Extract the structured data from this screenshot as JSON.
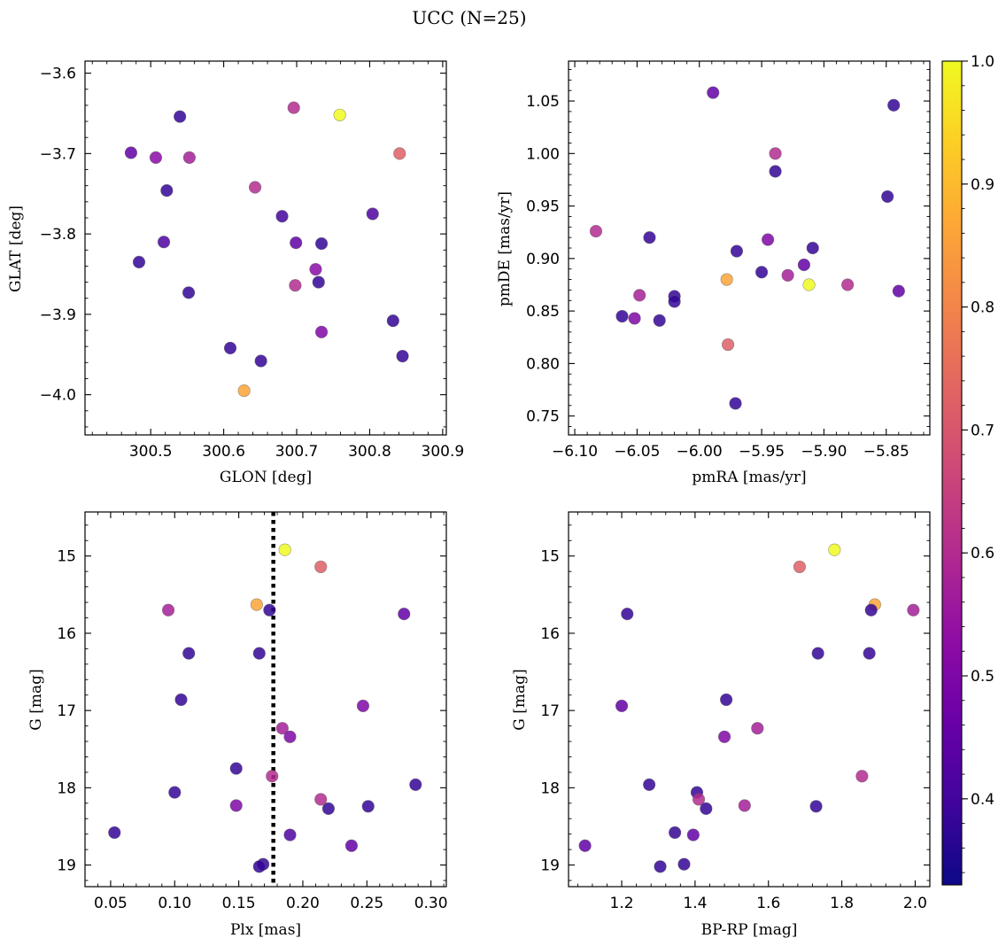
{
  "figure": {
    "title": "UCC (N=25)"
  },
  "colorbar": {
    "colormap": "plasma",
    "vmin": 0.33,
    "vmax": 1.0,
    "ticks": [
      0.4,
      0.5,
      0.6,
      0.7,
      0.8,
      0.9,
      1.0
    ],
    "tick_labels": [
      "0.4",
      "0.5",
      "0.6",
      "0.7",
      "0.8",
      "0.9",
      "1.0"
    ]
  },
  "chart_data": [
    {
      "type": "scatter",
      "xlabel": "GLON [deg]",
      "ylabel": "GLAT [deg]",
      "xlim": [
        300.41,
        300.905
      ],
      "ylim": [
        -4.05,
        -3.585
      ],
      "xticks": [
        300.5,
        300.6,
        300.7,
        300.8,
        300.9
      ],
      "xtick_labels": [
        "300.5",
        "300.6",
        "300.7",
        "300.8",
        "300.9"
      ],
      "yticks": [
        -4.0,
        -3.9,
        -3.8,
        -3.7,
        -3.6
      ],
      "ytick_labels": [
        "−4.0",
        "−3.9",
        "−3.8",
        "−3.7",
        "−3.6"
      ],
      "points": [
        {
          "x": 300.54,
          "y": -3.654,
          "c": 0.38
        },
        {
          "x": 300.473,
          "y": -3.699,
          "c": 0.45
        },
        {
          "x": 300.507,
          "y": -3.705,
          "c": 0.52
        },
        {
          "x": 300.553,
          "y": -3.705,
          "c": 0.57
        },
        {
          "x": 300.696,
          "y": -3.643,
          "c": 0.6
        },
        {
          "x": 300.759,
          "y": -3.652,
          "c": 1.0
        },
        {
          "x": 300.841,
          "y": -3.7,
          "c": 0.72
        },
        {
          "x": 300.522,
          "y": -3.746,
          "c": 0.38
        },
        {
          "x": 300.643,
          "y": -3.742,
          "c": 0.6
        },
        {
          "x": 300.68,
          "y": -3.778,
          "c": 0.4
        },
        {
          "x": 300.804,
          "y": -3.775,
          "c": 0.42
        },
        {
          "x": 300.518,
          "y": -3.81,
          "c": 0.42
        },
        {
          "x": 300.699,
          "y": -3.811,
          "c": 0.45
        },
        {
          "x": 300.734,
          "y": -3.812,
          "c": 0.38
        },
        {
          "x": 300.484,
          "y": -3.835,
          "c": 0.38
        },
        {
          "x": 300.726,
          "y": -3.844,
          "c": 0.52
        },
        {
          "x": 300.73,
          "y": -3.86,
          "c": 0.38
        },
        {
          "x": 300.698,
          "y": -3.864,
          "c": 0.6
        },
        {
          "x": 300.552,
          "y": -3.873,
          "c": 0.38
        },
        {
          "x": 300.832,
          "y": -3.908,
          "c": 0.38
        },
        {
          "x": 300.734,
          "y": -3.922,
          "c": 0.5
        },
        {
          "x": 300.609,
          "y": -3.942,
          "c": 0.38
        },
        {
          "x": 300.651,
          "y": -3.958,
          "c": 0.38
        },
        {
          "x": 300.845,
          "y": -3.952,
          "c": 0.38
        },
        {
          "x": 300.628,
          "y": -3.995,
          "c": 0.86
        }
      ]
    },
    {
      "type": "scatter",
      "xlabel": "pmRA [mas/yr]",
      "ylabel": "pmDE [mas/yr]",
      "xlim": [
        -6.105,
        -5.815
      ],
      "ylim": [
        0.732,
        1.088
      ],
      "xticks": [
        -6.1,
        -6.05,
        -6.0,
        -5.95,
        -5.9,
        -5.85
      ],
      "xtick_labels": [
        "−6.10",
        "−6.05",
        "−6.00",
        "−5.95",
        "−5.90",
        "−5.85"
      ],
      "yticks": [
        0.75,
        0.8,
        0.85,
        0.9,
        0.95,
        1.0,
        1.05
      ],
      "ytick_labels": [
        "0.75",
        "0.80",
        "0.85",
        "0.90",
        "0.95",
        "1.00",
        "1.05"
      ],
      "points": [
        {
          "x": -5.989,
          "y": 1.058,
          "c": 0.45
        },
        {
          "x": -5.844,
          "y": 1.046,
          "c": 0.38
        },
        {
          "x": -5.939,
          "y": 1.0,
          "c": 0.6
        },
        {
          "x": -5.939,
          "y": 0.983,
          "c": 0.38
        },
        {
          "x": -5.849,
          "y": 0.959,
          "c": 0.38
        },
        {
          "x": -6.083,
          "y": 0.926,
          "c": 0.6
        },
        {
          "x": -6.04,
          "y": 0.92,
          "c": 0.38
        },
        {
          "x": -5.945,
          "y": 0.918,
          "c": 0.5
        },
        {
          "x": -5.909,
          "y": 0.91,
          "c": 0.38
        },
        {
          "x": -5.97,
          "y": 0.907,
          "c": 0.38
        },
        {
          "x": -5.916,
          "y": 0.894,
          "c": 0.45
        },
        {
          "x": -5.95,
          "y": 0.887,
          "c": 0.38
        },
        {
          "x": -5.929,
          "y": 0.884,
          "c": 0.57
        },
        {
          "x": -5.978,
          "y": 0.88,
          "c": 0.86
        },
        {
          "x": -5.912,
          "y": 0.875,
          "c": 1.0
        },
        {
          "x": -5.881,
          "y": 0.875,
          "c": 0.6
        },
        {
          "x": -5.84,
          "y": 0.869,
          "c": 0.45
        },
        {
          "x": -6.048,
          "y": 0.865,
          "c": 0.57
        },
        {
          "x": -6.02,
          "y": 0.864,
          "c": 0.38
        },
        {
          "x": -6.02,
          "y": 0.859,
          "c": 0.38
        },
        {
          "x": -6.062,
          "y": 0.845,
          "c": 0.38
        },
        {
          "x": -6.052,
          "y": 0.843,
          "c": 0.5
        },
        {
          "x": -6.032,
          "y": 0.841,
          "c": 0.38
        },
        {
          "x": -5.977,
          "y": 0.818,
          "c": 0.72
        },
        {
          "x": -5.971,
          "y": 0.762,
          "c": 0.38
        }
      ]
    },
    {
      "type": "scatter",
      "xlabel": "Plx [mas]",
      "ylabel": "G [mag]",
      "xlim": [
        0.03,
        0.312
      ],
      "ylim": [
        19.28,
        14.43
      ],
      "xticks": [
        0.05,
        0.1,
        0.15,
        0.2,
        0.25,
        0.3
      ],
      "xtick_labels": [
        "0.05",
        "0.10",
        "0.15",
        "0.20",
        "0.25",
        "0.30"
      ],
      "yticks": [
        15,
        16,
        17,
        18,
        19
      ],
      "ytick_labels": [
        "15",
        "16",
        "17",
        "18",
        "19"
      ],
      "vline": {
        "x": 0.177,
        "style": "dotted"
      },
      "points": [
        {
          "x": 0.186,
          "y": 14.92,
          "c": 1.0
        },
        {
          "x": 0.214,
          "y": 15.14,
          "c": 0.72
        },
        {
          "x": 0.164,
          "y": 15.63,
          "c": 0.86
        },
        {
          "x": 0.095,
          "y": 15.7,
          "c": 0.57
        },
        {
          "x": 0.174,
          "y": 15.7,
          "c": 0.38
        },
        {
          "x": 0.279,
          "y": 15.75,
          "c": 0.45
        },
        {
          "x": 0.111,
          "y": 16.26,
          "c": 0.38
        },
        {
          "x": 0.166,
          "y": 16.26,
          "c": 0.38
        },
        {
          "x": 0.105,
          "y": 16.86,
          "c": 0.38
        },
        {
          "x": 0.247,
          "y": 16.94,
          "c": 0.5
        },
        {
          "x": 0.184,
          "y": 17.23,
          "c": 0.57
        },
        {
          "x": 0.19,
          "y": 17.34,
          "c": 0.5
        },
        {
          "x": 0.148,
          "y": 17.75,
          "c": 0.38
        },
        {
          "x": 0.176,
          "y": 17.85,
          "c": 0.6
        },
        {
          "x": 0.288,
          "y": 17.96,
          "c": 0.38
        },
        {
          "x": 0.1,
          "y": 18.06,
          "c": 0.38
        },
        {
          "x": 0.214,
          "y": 18.15,
          "c": 0.6
        },
        {
          "x": 0.148,
          "y": 18.23,
          "c": 0.5
        },
        {
          "x": 0.251,
          "y": 18.24,
          "c": 0.38
        },
        {
          "x": 0.22,
          "y": 18.27,
          "c": 0.38
        },
        {
          "x": 0.053,
          "y": 18.58,
          "c": 0.38
        },
        {
          "x": 0.19,
          "y": 18.61,
          "c": 0.42
        },
        {
          "x": 0.238,
          "y": 18.75,
          "c": 0.45
        },
        {
          "x": 0.169,
          "y": 18.99,
          "c": 0.38
        },
        {
          "x": 0.166,
          "y": 19.02,
          "c": 0.38
        }
      ]
    },
    {
      "type": "scatter",
      "xlabel": "BP-RP [mag]",
      "ylabel": "G [mag]",
      "xlim": [
        1.055,
        2.04
      ],
      "ylim": [
        19.28,
        14.43
      ],
      "xticks": [
        1.2,
        1.4,
        1.6,
        1.8,
        2.0
      ],
      "xtick_labels": [
        "1.2",
        "1.4",
        "1.6",
        "1.8",
        "2.0"
      ],
      "yticks": [
        15,
        16,
        17,
        18,
        19
      ],
      "ytick_labels": [
        "15",
        "16",
        "17",
        "18",
        "19"
      ],
      "points": [
        {
          "x": 1.78,
          "y": 14.92,
          "c": 1.0
        },
        {
          "x": 1.685,
          "y": 15.14,
          "c": 0.72
        },
        {
          "x": 1.89,
          "y": 15.63,
          "c": 0.86
        },
        {
          "x": 1.88,
          "y": 15.7,
          "c": 0.38
        },
        {
          "x": 1.995,
          "y": 15.7,
          "c": 0.57
        },
        {
          "x": 1.215,
          "y": 15.75,
          "c": 0.38
        },
        {
          "x": 1.735,
          "y": 16.26,
          "c": 0.38
        },
        {
          "x": 1.875,
          "y": 16.26,
          "c": 0.38
        },
        {
          "x": 1.485,
          "y": 16.86,
          "c": 0.38
        },
        {
          "x": 1.2,
          "y": 16.94,
          "c": 0.45
        },
        {
          "x": 1.57,
          "y": 17.23,
          "c": 0.57
        },
        {
          "x": 1.48,
          "y": 17.34,
          "c": 0.5
        },
        {
          "x": 1.855,
          "y": 17.85,
          "c": 0.6
        },
        {
          "x": 1.275,
          "y": 17.96,
          "c": 0.38
        },
        {
          "x": 1.405,
          "y": 18.06,
          "c": 0.38
        },
        {
          "x": 1.41,
          "y": 18.15,
          "c": 0.6
        },
        {
          "x": 1.535,
          "y": 18.23,
          "c": 0.57
        },
        {
          "x": 1.73,
          "y": 18.24,
          "c": 0.38
        },
        {
          "x": 1.43,
          "y": 18.27,
          "c": 0.38
        },
        {
          "x": 1.345,
          "y": 18.58,
          "c": 0.38
        },
        {
          "x": 1.395,
          "y": 18.61,
          "c": 0.45
        },
        {
          "x": 1.1,
          "y": 18.75,
          "c": 0.45
        },
        {
          "x": 1.37,
          "y": 18.99,
          "c": 0.38
        },
        {
          "x": 1.305,
          "y": 19.02,
          "c": 0.38
        }
      ]
    }
  ]
}
